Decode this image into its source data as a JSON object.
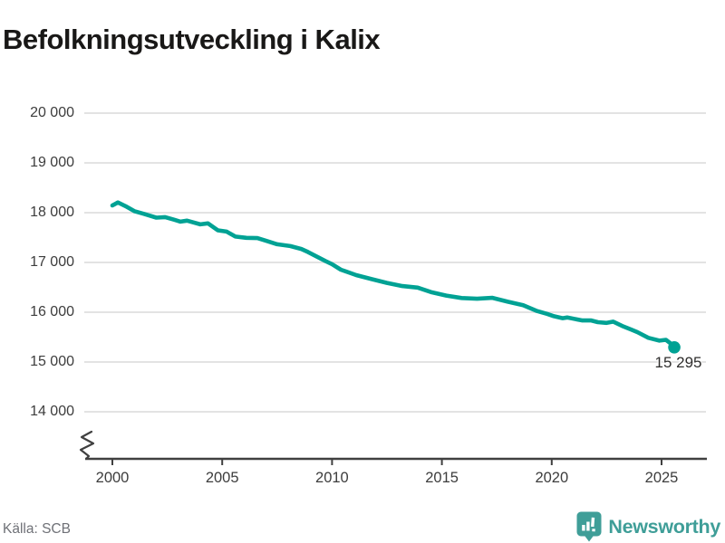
{
  "header": {
    "title": "Befolkningsutveckling i Kalix"
  },
  "chart_data": {
    "type": "line",
    "title": "Befolkningsutveckling i Kalix",
    "xlabel": "",
    "ylabel": "",
    "xlim": [
      2000,
      2025.58
    ],
    "ylim": [
      14000,
      20000
    ],
    "axis_break": true,
    "grid": "horizontal",
    "line_color": "#00a294",
    "gridline_color": "#e3e3e3",
    "axis_color": "#404040",
    "y_ticks": [
      {
        "label": "20 000",
        "value": 20000
      },
      {
        "label": "19 000",
        "value": 19000
      },
      {
        "label": "18 000",
        "value": 18000
      },
      {
        "label": "17 000",
        "value": 17000
      },
      {
        "label": "16 000",
        "value": 16000
      },
      {
        "label": "15 000",
        "value": 15000
      },
      {
        "label": "14 000",
        "value": 14000
      }
    ],
    "x_ticks": [
      {
        "label": "2000",
        "value": 2000
      },
      {
        "label": "2005",
        "value": 2005
      },
      {
        "label": "2010",
        "value": 2010
      },
      {
        "label": "2015",
        "value": 2015
      },
      {
        "label": "2020",
        "value": 2020
      },
      {
        "label": "2025",
        "value": 2025
      }
    ],
    "series": [
      {
        "name": "Kalix",
        "points": [
          [
            2000.0,
            18145
          ],
          [
            2000.25,
            18205
          ],
          [
            2000.6,
            18130
          ],
          [
            2001.0,
            18030
          ],
          [
            2001.4,
            17980
          ],
          [
            2002.0,
            17900
          ],
          [
            2002.4,
            17910
          ],
          [
            2002.8,
            17860
          ],
          [
            2003.1,
            17820
          ],
          [
            2003.4,
            17840
          ],
          [
            2004.0,
            17765
          ],
          [
            2004.35,
            17785
          ],
          [
            2004.8,
            17645
          ],
          [
            2005.2,
            17620
          ],
          [
            2005.6,
            17520
          ],
          [
            2006.1,
            17495
          ],
          [
            2006.6,
            17490
          ],
          [
            2007.0,
            17435
          ],
          [
            2007.5,
            17365
          ],
          [
            2008.1,
            17330
          ],
          [
            2008.6,
            17270
          ],
          [
            2008.9,
            17210
          ],
          [
            2009.3,
            17120
          ],
          [
            2009.7,
            17030
          ],
          [
            2010.0,
            16965
          ],
          [
            2010.4,
            16855
          ],
          [
            2011.1,
            16745
          ],
          [
            2011.8,
            16665
          ],
          [
            2012.5,
            16590
          ],
          [
            2013.2,
            16525
          ],
          [
            2013.9,
            16495
          ],
          [
            2014.5,
            16405
          ],
          [
            2015.2,
            16335
          ],
          [
            2015.9,
            16285
          ],
          [
            2016.6,
            16270
          ],
          [
            2017.3,
            16290
          ],
          [
            2018.0,
            16210
          ],
          [
            2018.7,
            16140
          ],
          [
            2019.3,
            16030
          ],
          [
            2019.8,
            15965
          ],
          [
            2020.1,
            15920
          ],
          [
            2020.5,
            15880
          ],
          [
            2020.7,
            15895
          ],
          [
            2021.4,
            15835
          ],
          [
            2021.8,
            15835
          ],
          [
            2022.1,
            15800
          ],
          [
            2022.5,
            15785
          ],
          [
            2022.8,
            15810
          ],
          [
            2023.2,
            15725
          ],
          [
            2023.6,
            15655
          ],
          [
            2023.9,
            15600
          ],
          [
            2024.4,
            15485
          ],
          [
            2024.9,
            15430
          ],
          [
            2025.2,
            15445
          ],
          [
            2025.45,
            15360
          ],
          [
            2025.58,
            15295
          ]
        ]
      }
    ],
    "end_label": "15 295",
    "end_value": 15295
  },
  "footer": {
    "source": "Källa: SCB",
    "brand": "Newsworthy",
    "brand_color": "#3f9e98",
    "brand_icon": "newsworthy-bubble-barchart-icon"
  }
}
